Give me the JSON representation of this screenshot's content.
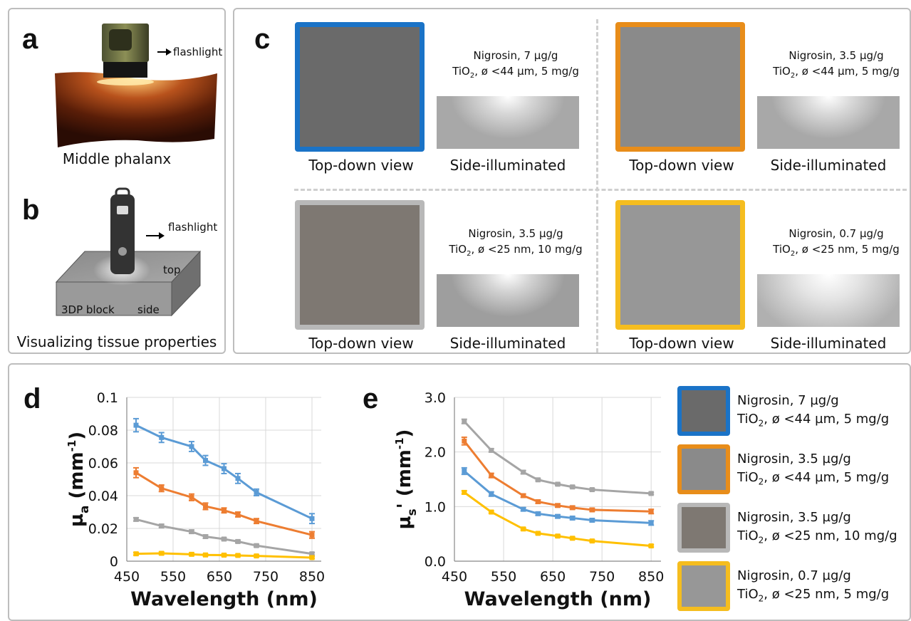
{
  "panel_a": {
    "label": "a",
    "arrow_label": "flashlight",
    "caption": "Middle phalanx"
  },
  "panel_b": {
    "label": "b",
    "arrow_label": "flashlight",
    "top_label": "top",
    "block_label": "3DP block",
    "side_label": "side",
    "caption": "Visualizing tissue properties"
  },
  "panel_c": {
    "label": "c",
    "top_down_caption": "Top-down view",
    "side_caption": "Side-illuminated",
    "samples": [
      {
        "line1": "Nigrosin, 7 µg/g",
        "line2_pre": "TiO",
        "line2_sub": "2",
        "line2_post": ", ø <44 µm, 5 mg/g",
        "frame": "#1a73c7",
        "fill": "#6a6a6a"
      },
      {
        "line1": "Nigrosin, 3.5 µg/g",
        "line2_pre": "TiO",
        "line2_sub": "2",
        "line2_post": ", ø <44 µm, 5 mg/g",
        "frame": "#e88d1a",
        "fill": "#8a8a8a"
      },
      {
        "line1": "Nigrosin, 3.5 µg/g",
        "line2_pre": "TiO",
        "line2_sub": "2",
        "line2_post": ", ø <25 nm, 10 mg/g",
        "frame": "#b8b8b8",
        "fill": "#7e7872"
      },
      {
        "line1": "Nigrosin, 0.7 µg/g",
        "line2_pre": "TiO",
        "line2_sub": "2",
        "line2_post": ", ø <25 nm, 5 mg/g",
        "frame": "#f5bd1f",
        "fill": "#979797"
      }
    ]
  },
  "panel_d": {
    "label": "d"
  },
  "panel_e": {
    "label": "e"
  },
  "legend": [
    {
      "line1": "Nigrosin, 7 µg/g",
      "line2_pre": "TiO",
      "line2_sub": "2",
      "line2_post": ", ø <44 µm, 5 mg/g",
      "frame": "#1a73c7",
      "fill": "#6a6a6a"
    },
    {
      "line1": "Nigrosin, 3.5 µg/g",
      "line2_pre": "TiO",
      "line2_sub": "2",
      "line2_post": ", ø <44 µm, 5 mg/g",
      "frame": "#e88d1a",
      "fill": "#8a8a8a"
    },
    {
      "line1": "Nigrosin, 3.5 µg/g",
      "line2_pre": "TiO",
      "line2_sub": "2",
      "line2_post": ", ø <25 nm, 10 mg/g",
      "frame": "#b8b8b8",
      "fill": "#7e7872"
    },
    {
      "line1": "Nigrosin, 0.7 µg/g",
      "line2_pre": "TiO",
      "line2_sub": "2",
      "line2_post": ", ø <25 nm, 5 mg/g",
      "frame": "#f5bd1f",
      "fill": "#979797"
    }
  ],
  "chart_data": [
    {
      "type": "line",
      "xlabel": "Wavelength (nm)",
      "ylabel_main": "µ",
      "ylabel_sub": "a",
      "ylabel_unit": " (mm",
      "ylabel_sup": "-1",
      "ylabel_close": ")",
      "xlim": [
        450,
        870
      ],
      "ylim": [
        0,
        0.1
      ],
      "xticks": [
        450,
        550,
        650,
        750,
        850
      ],
      "xtick_labels": [
        "450",
        "550",
        "650",
        "750",
        "850"
      ],
      "yticks": [
        0,
        0.02,
        0.04,
        0.06,
        0.08,
        0.1
      ],
      "ytick_labels": [
        "0",
        "0.02",
        "0.04",
        "0.06",
        "0.08",
        "0.1"
      ],
      "grid": true,
      "x": [
        470,
        525,
        590,
        620,
        660,
        690,
        730,
        850
      ],
      "series": [
        {
          "color": "#5b9bd5",
          "values": [
            0.083,
            0.0755,
            0.07,
            0.0615,
            0.0565,
            0.0505,
            0.042,
            0.026
          ],
          "errors": [
            0.004,
            0.003,
            0.003,
            0.003,
            0.003,
            0.003,
            0.002,
            0.003
          ]
        },
        {
          "color": "#ed7d31",
          "values": [
            0.054,
            0.0445,
            0.039,
            0.0335,
            0.031,
            0.0285,
            0.0245,
            0.016
          ],
          "errors": [
            0.003,
            0.002,
            0.002,
            0.002,
            0.0015,
            0.0015,
            0.0015,
            0.002
          ]
        },
        {
          "color": "#a5a5a5",
          "values": [
            0.0255,
            0.0215,
            0.018,
            0.015,
            0.0135,
            0.012,
            0.0095,
            0.0045
          ],
          "errors": [
            0.001,
            0.001,
            0.001,
            0.001,
            0.0008,
            0.0008,
            0.0008,
            0.0008
          ]
        },
        {
          "color": "#ffc000",
          "values": [
            0.0045,
            0.0048,
            0.0042,
            0.0038,
            0.0037,
            0.0035,
            0.0032,
            0.0022
          ],
          "errors": [
            0.0008,
            0.0008,
            0.0008,
            0.0006,
            0.0006,
            0.0006,
            0.0006,
            0.0006
          ]
        }
      ]
    },
    {
      "type": "line",
      "xlabel": "Wavelength (nm)",
      "ylabel_main": "µ",
      "ylabel_sub": "s",
      "ylabel_unit": "' (mm",
      "ylabel_sup": "-1",
      "ylabel_close": ")",
      "xlim": [
        450,
        870
      ],
      "ylim": [
        0,
        3.0
      ],
      "xticks": [
        450,
        550,
        650,
        750,
        850
      ],
      "xtick_labels": [
        "450",
        "550",
        "650",
        "750",
        "850"
      ],
      "yticks": [
        0,
        1.0,
        2.0,
        3.0
      ],
      "ytick_labels": [
        "0.0",
        "1.0",
        "2.0",
        "3.0"
      ],
      "grid": true,
      "x": [
        470,
        525,
        590,
        620,
        660,
        690,
        730,
        850
      ],
      "series": [
        {
          "color": "#5b9bd5",
          "values": [
            1.65,
            1.23,
            0.95,
            0.87,
            0.82,
            0.79,
            0.75,
            0.7
          ],
          "errors": [
            0.06,
            0.04,
            0.03,
            0.03,
            0.03,
            0.03,
            0.03,
            0.04
          ]
        },
        {
          "color": "#ed7d31",
          "values": [
            2.2,
            1.57,
            1.2,
            1.09,
            1.02,
            0.98,
            0.94,
            0.91
          ],
          "errors": [
            0.07,
            0.04,
            0.03,
            0.03,
            0.03,
            0.03,
            0.03,
            0.04
          ]
        },
        {
          "color": "#a5a5a5",
          "values": [
            2.56,
            2.03,
            1.63,
            1.49,
            1.41,
            1.36,
            1.31,
            1.24
          ],
          "errors": [
            0.04,
            0.03,
            0.03,
            0.02,
            0.02,
            0.02,
            0.02,
            0.02
          ]
        },
        {
          "color": "#ffc000",
          "values": [
            1.26,
            0.9,
            0.59,
            0.51,
            0.46,
            0.42,
            0.37,
            0.28
          ],
          "errors": [
            0.03,
            0.02,
            0.02,
            0.02,
            0.02,
            0.02,
            0.02,
            0.02
          ]
        }
      ]
    }
  ]
}
